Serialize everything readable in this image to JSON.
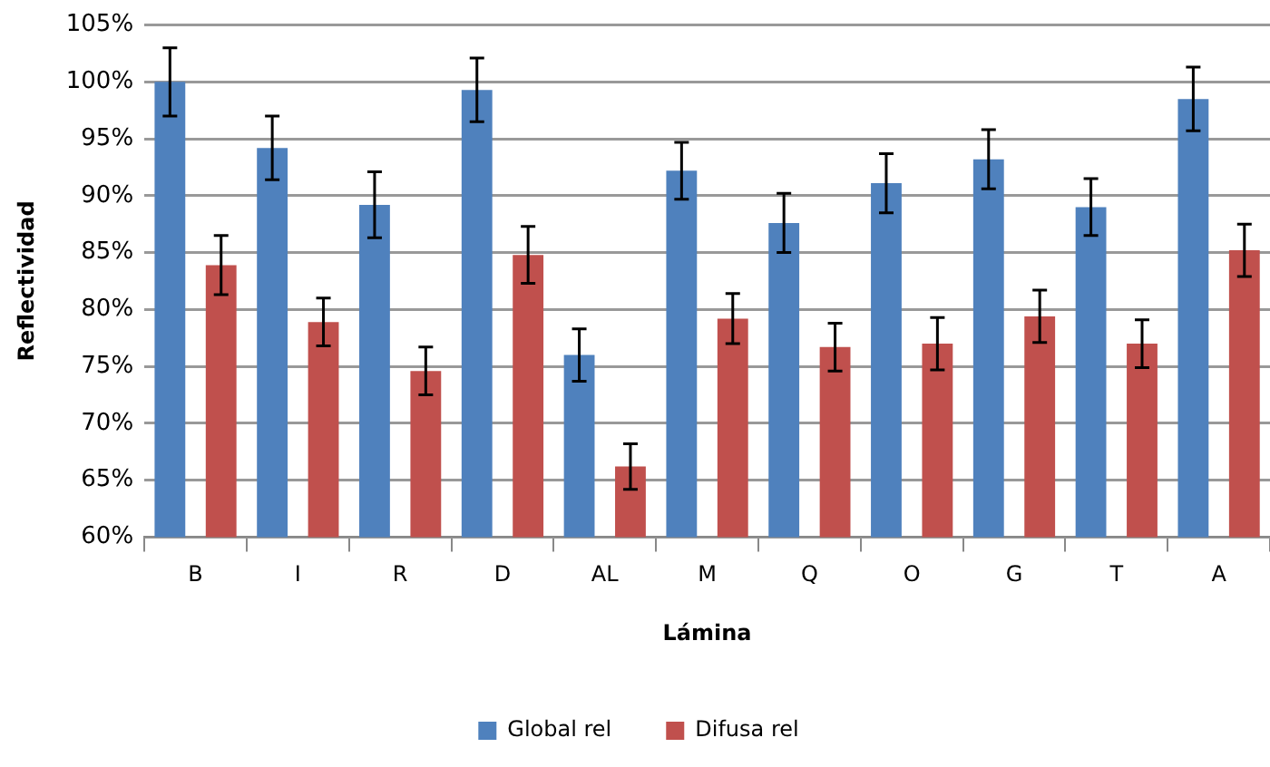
{
  "chart_data": {
    "type": "bar",
    "xlabel": "Lámina",
    "ylabel": "Reflectividad",
    "categories": [
      "B",
      "I",
      "R",
      "D",
      "AL",
      "M",
      "Q",
      "O",
      "G",
      "T",
      "A"
    ],
    "series": [
      {
        "name": "Global rel",
        "color": "#4f81bd",
        "values": [
          100.0,
          94.2,
          89.2,
          99.3,
          76.0,
          92.2,
          87.6,
          91.1,
          93.2,
          89.0,
          98.5
        ],
        "errors": [
          3.0,
          2.8,
          2.9,
          2.8,
          2.3,
          2.5,
          2.6,
          2.6,
          2.6,
          2.5,
          2.8
        ]
      },
      {
        "name": "Difusa rel",
        "color": "#c0504d",
        "values": [
          83.9,
          78.9,
          74.6,
          84.8,
          66.2,
          79.2,
          76.7,
          77.0,
          79.4,
          77.0,
          85.2
        ],
        "errors": [
          2.6,
          2.1,
          2.1,
          2.5,
          2.0,
          2.2,
          2.1,
          2.3,
          2.3,
          2.1,
          2.3
        ]
      }
    ],
    "ylim": [
      60,
      105
    ],
    "yticks": [
      {
        "value": 60,
        "label": "60%"
      },
      {
        "value": 65,
        "label": "65%"
      },
      {
        "value": 70,
        "label": "70%"
      },
      {
        "value": 75,
        "label": "75%"
      },
      {
        "value": 80,
        "label": "80%"
      },
      {
        "value": 85,
        "label": "85%"
      },
      {
        "value": 90,
        "label": "90%"
      },
      {
        "value": 95,
        "label": "95%"
      },
      {
        "value": 100,
        "label": "100%"
      },
      {
        "value": 105,
        "label": "105%"
      }
    ],
    "grid": "y",
    "legend": "bottom"
  }
}
